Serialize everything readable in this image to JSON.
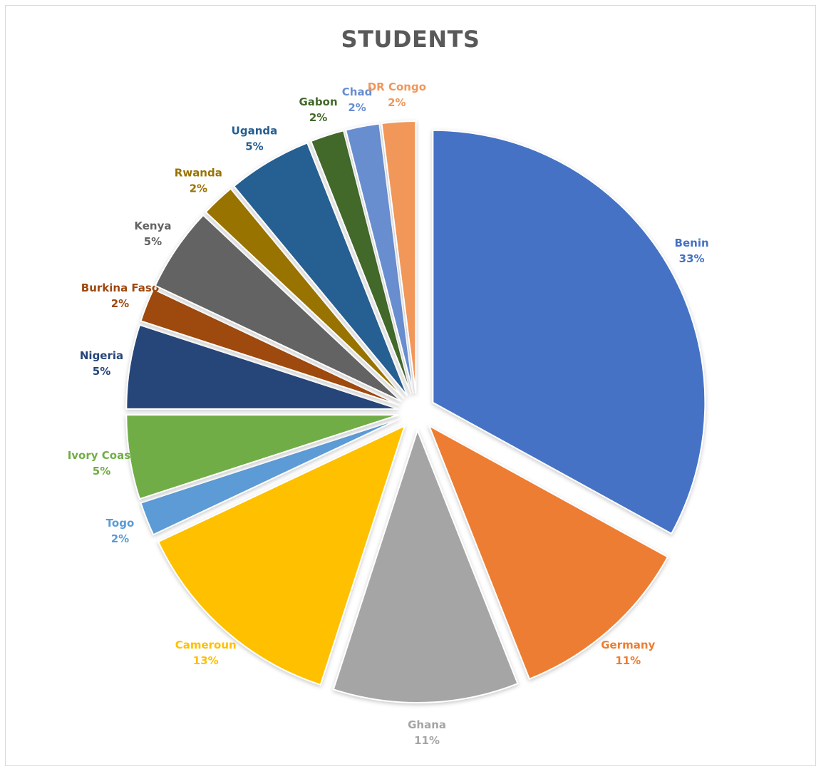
{
  "chart_data": {
    "type": "pie",
    "title": "STUDENTS",
    "slices": [
      {
        "name": "Benin",
        "value": 33,
        "pct_label": "33%",
        "color": "#4472C4",
        "label_color": "#4472C4"
      },
      {
        "name": "Germany",
        "value": 11,
        "pct_label": "11%",
        "color": "#ED7D31",
        "label_color": "#ED7D31"
      },
      {
        "name": "Ghana",
        "value": 11,
        "pct_label": "11%",
        "color": "#A5A5A5",
        "label_color": "#A5A5A5"
      },
      {
        "name": "Cameroun",
        "value": 13,
        "pct_label": "13%",
        "color": "#FFC000",
        "label_color": "#FFC000"
      },
      {
        "name": "Togo",
        "value": 2,
        "pct_label": "2%",
        "color": "#5B9BD5",
        "label_color": "#5B9BD5"
      },
      {
        "name": "Ivory Coast",
        "value": 5,
        "pct_label": "5%",
        "color": "#70AD47",
        "label_color": "#70AD47"
      },
      {
        "name": "Nigeria",
        "value": 5,
        "pct_label": "5%",
        "color": "#264478",
        "label_color": "#264478"
      },
      {
        "name": "Burkina Faso",
        "value": 2,
        "pct_label": "2%",
        "color": "#9E480E",
        "label_color": "#9E480E"
      },
      {
        "name": "Kenya",
        "value": 5,
        "pct_label": "5%",
        "color": "#636363",
        "label_color": "#636363"
      },
      {
        "name": "Rwanda",
        "value": 2,
        "pct_label": "2%",
        "color": "#997300",
        "label_color": "#997300"
      },
      {
        "name": "Uganda",
        "value": 5,
        "pct_label": "5%",
        "color": "#255E91",
        "label_color": "#255E91"
      },
      {
        "name": "Gabon",
        "value": 2,
        "pct_label": "2%",
        "color": "#43682B",
        "label_color": "#43682B"
      },
      {
        "name": "Chad",
        "value": 2,
        "pct_label": "2%",
        "color": "#698ED0",
        "label_color": "#698ED0"
      },
      {
        "name": "DR Congo",
        "value": 2,
        "pct_label": "2%",
        "color": "#F1975A",
        "label_color": "#F1975A"
      }
    ],
    "legend": "none",
    "data_labels": "outside",
    "exploded": true
  }
}
